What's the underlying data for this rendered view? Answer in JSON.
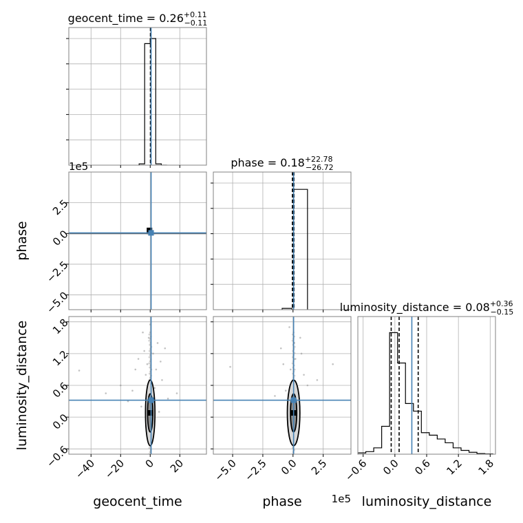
{
  "chart_data": {
    "type": "corner",
    "parameters": [
      "geocent_time",
      "phase",
      "luminosity_distance"
    ],
    "truths": {
      "geocent_time": 0.6,
      "phase": 0.05,
      "luminosity_distance": 0.32
    },
    "colors": {
      "truth": "#4682b4",
      "hist": "#000000",
      "scatter": "#999999",
      "grid": "#b0b0b0"
    },
    "panels": [
      {
        "id": "geocent_time-hist",
        "row": 0,
        "col": 0,
        "title_label": "geocent_time",
        "median": "0.26",
        "plus": "+0.11",
        "minus": "−0.11",
        "xlim": [
          -55,
          38
        ],
        "xgrid": [
          -40,
          -20,
          0,
          20
        ],
        "ygrid_fraction": [
          0.2,
          0.4,
          0.6,
          0.8,
          1.0
        ],
        "hist_edges": [
          -7.5,
          -3.75,
          0,
          3.75,
          7.5,
          11.25
        ],
        "hist_heights": [
          0.01,
          0.96,
          1.0,
          0.01,
          0.0
        ],
        "quantiles": [
          0.15,
          0.26,
          0.37
        ]
      },
      {
        "id": "phase-hist",
        "row": 1,
        "col": 1,
        "title_label": "phase",
        "median": "0.18",
        "plus": "+22.78",
        "minus": "−26.72",
        "xlim": [
          -6.6,
          4.8
        ],
        "xgrid": [
          -5.0,
          -2.5,
          0.0,
          2.5
        ],
        "ygrid_fraction": [
          0.2,
          0.4,
          0.6,
          0.8,
          1.0
        ],
        "hist_edges": [
          -0.9,
          -0.1,
          0.05,
          1.2
        ],
        "hist_heights": [
          0.01,
          0.0,
          0.95
        ],
        "quantiles": [
          -0.05,
          0.02,
          0.08
        ]
      },
      {
        "id": "luminosity_distance-hist",
        "row": 2,
        "col": 2,
        "title_label": "luminosity_distance",
        "median": "0.08",
        "plus": "+0.36",
        "minus": "−0.15",
        "xlim": [
          -0.7,
          1.9
        ],
        "xgrid": [
          -0.6,
          0.0,
          0.6,
          1.2,
          1.8
        ],
        "hist_edges": [
          -0.7,
          -0.55,
          -0.4,
          -0.25,
          -0.1,
          0.05,
          0.2,
          0.35,
          0.5,
          0.65,
          0.8,
          0.95,
          1.1,
          1.25,
          1.4,
          1.55,
          1.7,
          1.85
        ],
        "hist_heights": [
          0.01,
          0.02,
          0.05,
          0.22,
          0.96,
          0.72,
          0.4,
          0.34,
          0.17,
          0.15,
          0.12,
          0.09,
          0.05,
          0.03,
          0.015,
          0.005,
          0.002
        ],
        "quantiles": [
          -0.07,
          0.08,
          0.44
        ]
      },
      {
        "id": "phase-vs-geocent_time",
        "row": 1,
        "col": 0,
        "xlim": [
          -55,
          38
        ],
        "ylim": [
          -6.2,
          5.0
        ],
        "xgrid": [
          -40,
          -20,
          0,
          20
        ],
        "ygrid": [
          -5.0,
          -2.5,
          0.0,
          2.5
        ],
        "ylabel": "phase",
        "yticklabels": [
          "−5.0",
          "−2.5",
          "0.0",
          "2.5"
        ],
        "y_offset_label": "1e5",
        "points": [
          [
            -0.5,
            0.25
          ],
          [
            0.5,
            0.05
          ],
          [
            1.5,
            -0.05
          ],
          [
            -2,
            0.0
          ],
          [
            3,
            0.0
          ],
          [
            -1,
            -0.1
          ],
          [
            0.8,
            0.12
          ]
        ]
      },
      {
        "id": "luminosity_distance-vs-geocent_time",
        "row": 2,
        "col": 0,
        "xlim": [
          -55,
          38
        ],
        "ylim": [
          -0.7,
          1.9
        ],
        "xgrid": [
          -40,
          -20,
          0,
          20
        ],
        "ygrid": [
          -0.6,
          0.0,
          0.6,
          1.2,
          1.8
        ],
        "xticklabels": [
          "−40",
          "−20",
          "0",
          "20"
        ],
        "yticklabels": [
          "−0.6",
          "0.0",
          "0.6",
          "1.2",
          "1.8"
        ],
        "xlabel": "geocent_time",
        "ylabel": "luminosity_distance",
        "points": [
          [
            -20,
            0.6
          ],
          [
            -30,
            0.45
          ],
          [
            -10,
            0.9
          ],
          [
            -48,
            0.88
          ],
          [
            5,
            1.4
          ],
          [
            -5,
            1.6
          ],
          [
            2,
            1.2
          ],
          [
            -3,
            0.8
          ],
          [
            8,
            0.7
          ],
          [
            -12,
            0.5
          ],
          [
            12,
            0.35
          ],
          [
            -2,
            1.0
          ],
          [
            4,
            0.9
          ],
          [
            -6,
            0.2
          ],
          [
            6,
            0.1
          ],
          [
            -8,
            1.1
          ],
          [
            10,
            1.3
          ],
          [
            0,
            1.75
          ],
          [
            -1,
            1.5
          ],
          [
            3,
            0.55
          ],
          [
            18,
            0.45
          ],
          [
            -15,
            0.3
          ],
          [
            1,
            0.65
          ],
          [
            -4,
            1.25
          ],
          [
            7,
            1.05
          ]
        ],
        "contour_center": [
          0.0,
          0.08
        ],
        "contour_half_widths": [
          [
            1.8,
            0.36
          ],
          [
            3.2,
            0.62
          ]
        ]
      },
      {
        "id": "luminosity_distance-vs-phase",
        "row": 2,
        "col": 1,
        "xlim": [
          -6.6,
          4.8
        ],
        "ylim": [
          -0.7,
          1.9
        ],
        "xgrid": [
          -5.0,
          -2.5,
          0.0,
          2.5
        ],
        "ygrid": [
          -0.6,
          0.0,
          0.6,
          1.2,
          1.8
        ],
        "xticklabels": [
          "−5.0",
          "−2.5",
          "0.0",
          "2.5"
        ],
        "xlabel": "phase",
        "x_offset_label": "1e5",
        "points": [
          [
            -5.2,
            0.95
          ],
          [
            3.3,
            1.0
          ],
          [
            -1.0,
            1.3
          ],
          [
            0.6,
            1.5
          ],
          [
            -0.3,
            1.7
          ],
          [
            0.9,
            0.8
          ],
          [
            -0.6,
            0.5
          ],
          [
            1.2,
            0.6
          ],
          [
            0.2,
            1.1
          ],
          [
            -0.2,
            0.9
          ],
          [
            0.5,
            0.3
          ],
          [
            -1.5,
            0.4
          ],
          [
            0.1,
            1.4
          ],
          [
            2.0,
            0.7
          ],
          [
            -0.8,
            1.0
          ],
          [
            0.7,
            1.2
          ]
        ],
        "contour_center": [
          0.05,
          0.08
        ],
        "contour_half_widths": [
          [
            0.26,
            0.36
          ],
          [
            0.52,
            0.62
          ]
        ]
      }
    ]
  }
}
